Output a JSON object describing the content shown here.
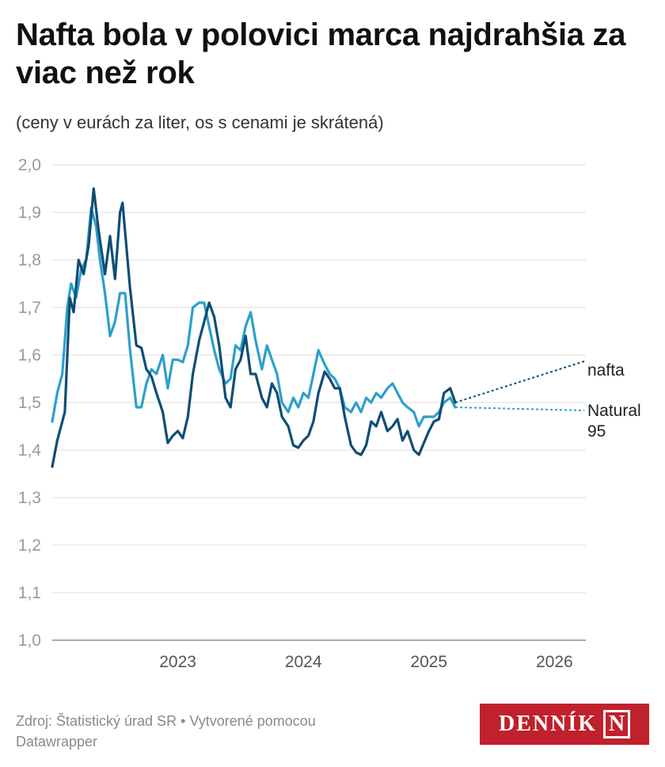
{
  "title": "Nafta bola v polovici marca najdrahšia za viac než rok",
  "subtitle": "(ceny v eurách za liter, os s cenami je skrátená)",
  "footer": {
    "source": "Zdroj: Štatistický úrad SR • Vytvorené pomocou Datawrapper"
  },
  "logo": {
    "text": "DENNÍK",
    "mark": "N"
  },
  "colors": {
    "nafta": "#0f4d74",
    "natural95": "#2da0cb",
    "grid": "#dddddd",
    "tick": "#9a9a9a"
  },
  "chart_data": {
    "type": "line",
    "title": "Nafta bola v polovici marca najdrahšia za viac než rok",
    "ylabel": "",
    "xlabel": "",
    "ylim": [
      1.0,
      2.0
    ],
    "xlim": [
      2022.0,
      2026.25
    ],
    "y_ticks": [
      "1,0",
      "1,1",
      "1,2",
      "1,3",
      "1,4",
      "1,5",
      "1,6",
      "1,7",
      "1,8",
      "1,9",
      "2,0"
    ],
    "x_ticks": [
      {
        "label": "2023",
        "value": 2023
      },
      {
        "label": "2024",
        "value": 2024
      },
      {
        "label": "2025",
        "value": 2025
      },
      {
        "label": "2026",
        "value": 2026
      }
    ],
    "series": [
      {
        "name": "nafta",
        "label": "nafta",
        "points": [
          [
            2022.0,
            1.365
          ],
          [
            2022.04,
            1.42
          ],
          [
            2022.08,
            1.46
          ],
          [
            2022.1,
            1.48
          ],
          [
            2022.14,
            1.72
          ],
          [
            2022.17,
            1.69
          ],
          [
            2022.21,
            1.8
          ],
          [
            2022.25,
            1.77
          ],
          [
            2022.29,
            1.83
          ],
          [
            2022.33,
            1.95
          ],
          [
            2022.37,
            1.86
          ],
          [
            2022.42,
            1.77
          ],
          [
            2022.46,
            1.85
          ],
          [
            2022.5,
            1.76
          ],
          [
            2022.54,
            1.9
          ],
          [
            2022.56,
            1.92
          ],
          [
            2022.62,
            1.74
          ],
          [
            2022.67,
            1.62
          ],
          [
            2022.71,
            1.615
          ],
          [
            2022.75,
            1.57
          ],
          [
            2022.79,
            1.555
          ],
          [
            2022.83,
            1.52
          ],
          [
            2022.88,
            1.48
          ],
          [
            2022.92,
            1.415
          ],
          [
            2022.96,
            1.43
          ],
          [
            2023.0,
            1.44
          ],
          [
            2023.04,
            1.425
          ],
          [
            2023.08,
            1.47
          ],
          [
            2023.12,
            1.56
          ],
          [
            2023.17,
            1.63
          ],
          [
            2023.21,
            1.67
          ],
          [
            2023.25,
            1.71
          ],
          [
            2023.29,
            1.68
          ],
          [
            2023.33,
            1.62
          ],
          [
            2023.38,
            1.51
          ],
          [
            2023.42,
            1.49
          ],
          [
            2023.46,
            1.57
          ],
          [
            2023.5,
            1.59
          ],
          [
            2023.54,
            1.64
          ],
          [
            2023.58,
            1.56
          ],
          [
            2023.62,
            1.56
          ],
          [
            2023.67,
            1.51
          ],
          [
            2023.71,
            1.49
          ],
          [
            2023.75,
            1.54
          ],
          [
            2023.79,
            1.52
          ],
          [
            2023.83,
            1.47
          ],
          [
            2023.88,
            1.45
          ],
          [
            2023.92,
            1.41
          ],
          [
            2023.96,
            1.405
          ],
          [
            2024.0,
            1.42
          ],
          [
            2024.04,
            1.43
          ],
          [
            2024.08,
            1.46
          ],
          [
            2024.12,
            1.52
          ],
          [
            2024.17,
            1.565
          ],
          [
            2024.21,
            1.55
          ],
          [
            2024.25,
            1.53
          ],
          [
            2024.29,
            1.53
          ],
          [
            2024.33,
            1.47
          ],
          [
            2024.38,
            1.41
          ],
          [
            2024.42,
            1.395
          ],
          [
            2024.46,
            1.39
          ],
          [
            2024.5,
            1.41
          ],
          [
            2024.54,
            1.46
          ],
          [
            2024.58,
            1.45
          ],
          [
            2024.62,
            1.48
          ],
          [
            2024.67,
            1.44
          ],
          [
            2024.71,
            1.45
          ],
          [
            2024.75,
            1.465
          ],
          [
            2024.79,
            1.42
          ],
          [
            2024.83,
            1.44
          ],
          [
            2024.88,
            1.4
          ],
          [
            2024.92,
            1.39
          ],
          [
            2024.96,
            1.415
          ],
          [
            2025.0,
            1.44
          ],
          [
            2025.04,
            1.46
          ],
          [
            2025.08,
            1.465
          ],
          [
            2025.12,
            1.52
          ],
          [
            2025.17,
            1.53
          ],
          [
            2025.21,
            1.5
          ]
        ]
      },
      {
        "name": "Natural 95",
        "label": "Natural\n95",
        "points": [
          [
            2022.0,
            1.46
          ],
          [
            2022.04,
            1.52
          ],
          [
            2022.08,
            1.56
          ],
          [
            2022.12,
            1.7
          ],
          [
            2022.15,
            1.75
          ],
          [
            2022.19,
            1.72
          ],
          [
            2022.23,
            1.78
          ],
          [
            2022.27,
            1.8
          ],
          [
            2022.31,
            1.91
          ],
          [
            2022.35,
            1.87
          ],
          [
            2022.38,
            1.8
          ],
          [
            2022.42,
            1.73
          ],
          [
            2022.46,
            1.64
          ],
          [
            2022.5,
            1.67
          ],
          [
            2022.54,
            1.73
          ],
          [
            2022.58,
            1.73
          ],
          [
            2022.62,
            1.61
          ],
          [
            2022.67,
            1.49
          ],
          [
            2022.71,
            1.49
          ],
          [
            2022.75,
            1.54
          ],
          [
            2022.79,
            1.57
          ],
          [
            2022.83,
            1.56
          ],
          [
            2022.88,
            1.6
          ],
          [
            2022.92,
            1.53
          ],
          [
            2022.96,
            1.59
          ],
          [
            2023.0,
            1.59
          ],
          [
            2023.04,
            1.585
          ],
          [
            2023.08,
            1.62
          ],
          [
            2023.12,
            1.7
          ],
          [
            2023.17,
            1.71
          ],
          [
            2023.21,
            1.71
          ],
          [
            2023.25,
            1.66
          ],
          [
            2023.29,
            1.61
          ],
          [
            2023.33,
            1.57
          ],
          [
            2023.38,
            1.54
          ],
          [
            2023.42,
            1.55
          ],
          [
            2023.46,
            1.62
          ],
          [
            2023.5,
            1.61
          ],
          [
            2023.54,
            1.66
          ],
          [
            2023.58,
            1.69
          ],
          [
            2023.62,
            1.63
          ],
          [
            2023.67,
            1.57
          ],
          [
            2023.71,
            1.62
          ],
          [
            2023.75,
            1.59
          ],
          [
            2023.79,
            1.56
          ],
          [
            2023.83,
            1.5
          ],
          [
            2023.88,
            1.48
          ],
          [
            2023.92,
            1.51
          ],
          [
            2023.96,
            1.49
          ],
          [
            2024.0,
            1.52
          ],
          [
            2024.04,
            1.51
          ],
          [
            2024.08,
            1.56
          ],
          [
            2024.12,
            1.61
          ],
          [
            2024.17,
            1.58
          ],
          [
            2024.21,
            1.56
          ],
          [
            2024.25,
            1.55
          ],
          [
            2024.29,
            1.53
          ],
          [
            2024.33,
            1.49
          ],
          [
            2024.38,
            1.48
          ],
          [
            2024.42,
            1.5
          ],
          [
            2024.46,
            1.48
          ],
          [
            2024.5,
            1.51
          ],
          [
            2024.54,
            1.5
          ],
          [
            2024.58,
            1.52
          ],
          [
            2024.62,
            1.51
          ],
          [
            2024.67,
            1.53
          ],
          [
            2024.71,
            1.54
          ],
          [
            2024.75,
            1.52
          ],
          [
            2024.79,
            1.5
          ],
          [
            2024.83,
            1.49
          ],
          [
            2024.88,
            1.48
          ],
          [
            2024.92,
            1.45
          ],
          [
            2024.96,
            1.47
          ],
          [
            2025.0,
            1.47
          ],
          [
            2025.04,
            1.47
          ],
          [
            2025.08,
            1.48
          ],
          [
            2025.12,
            1.5
          ],
          [
            2025.17,
            1.51
          ],
          [
            2025.21,
            1.49
          ]
        ]
      }
    ]
  }
}
